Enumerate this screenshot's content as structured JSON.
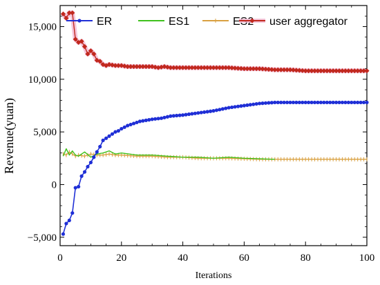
{
  "chart_data": {
    "type": "line",
    "xlabel": "Iterations",
    "ylabel": "Revenue(yuan)",
    "xlim": [
      0,
      100
    ],
    "ylim": [
      -5800,
      17000
    ],
    "x_ticks": [
      0,
      20,
      40,
      60,
      80,
      100
    ],
    "x_tick_labels": [
      "0",
      "20",
      "40",
      "60",
      "80",
      "100"
    ],
    "y_ticks": [
      -5000,
      0,
      5000,
      10000,
      15000
    ],
    "y_tick_labels": [
      "−5,000",
      "0",
      "5,000",
      "10,000",
      "15,000"
    ],
    "grid": false,
    "legend_position": "top",
    "series": [
      {
        "name": "ER",
        "color": "#1f2fd6",
        "marker": "dot",
        "x": [
          1,
          2,
          3,
          4,
          5,
          6,
          7,
          8,
          9,
          10,
          11,
          12,
          13,
          14,
          15,
          16,
          17,
          18,
          19,
          20,
          22,
          24,
          26,
          28,
          30,
          33,
          36,
          40,
          45,
          50,
          55,
          60,
          65,
          70,
          72,
          75,
          80,
          85,
          90,
          95,
          100
        ],
        "y": [
          -4700,
          -3700,
          -3400,
          -2700,
          -300,
          -200,
          800,
          1200,
          1700,
          2100,
          2600,
          3100,
          3600,
          4200,
          4400,
          4600,
          4800,
          5000,
          5100,
          5300,
          5600,
          5800,
          6000,
          6100,
          6200,
          6300,
          6500,
          6600,
          6800,
          7000,
          7300,
          7500,
          7700,
          7800,
          7800,
          7800,
          7800,
          7800,
          7800,
          7800,
          7800
        ]
      },
      {
        "name": "ES1",
        "color": "#3ec11c",
        "marker": "none",
        "x": [
          1,
          2,
          3,
          4,
          5,
          6,
          8,
          10,
          12,
          14,
          16,
          18,
          20,
          25,
          30,
          35,
          40,
          45,
          50,
          55,
          60,
          65,
          70
        ],
        "y": [
          2700,
          3400,
          2800,
          3200,
          2800,
          2700,
          3100,
          2600,
          2900,
          3000,
          3200,
          2900,
          3000,
          2800,
          2800,
          2700,
          2600,
          2600,
          2500,
          2600,
          2500,
          2450,
          2400
        ]
      },
      {
        "name": "ES2",
        "color": "#d9a040",
        "marker": "tick",
        "x": [
          1,
          2,
          3,
          4,
          5,
          6,
          8,
          10,
          12,
          14,
          16,
          18,
          20,
          25,
          30,
          35,
          40,
          45,
          50,
          55,
          60,
          65,
          70,
          75,
          80,
          85,
          90,
          95,
          100
        ],
        "y": [
          2900,
          2800,
          3100,
          2900,
          2700,
          2800,
          2700,
          2900,
          2800,
          2800,
          2900,
          2800,
          2800,
          2700,
          2700,
          2600,
          2600,
          2500,
          2500,
          2500,
          2450,
          2400,
          2400,
          2400,
          2400,
          2400,
          2400,
          2400,
          2400
        ]
      },
      {
        "name": "user aggregator",
        "color": "#c1281e",
        "marker": "diamond",
        "x": [
          1,
          2,
          3,
          4,
          5,
          6,
          7,
          8,
          9,
          10,
          11,
          12,
          13,
          14,
          15,
          16,
          18,
          20,
          22,
          24,
          26,
          28,
          30,
          32,
          34,
          36,
          40,
          45,
          50,
          55,
          60,
          65,
          70,
          75,
          80,
          85,
          90,
          95,
          100
        ],
        "y": [
          16200,
          15800,
          16300,
          16300,
          13800,
          13500,
          13600,
          13100,
          12400,
          12700,
          12400,
          11800,
          11700,
          11400,
          11300,
          11400,
          11300,
          11300,
          11200,
          11200,
          11200,
          11200,
          11200,
          11100,
          11200,
          11100,
          11100,
          11100,
          11100,
          11100,
          11000,
          11000,
          10900,
          10900,
          10800,
          10800,
          10800,
          10800,
          10800
        ]
      }
    ]
  }
}
